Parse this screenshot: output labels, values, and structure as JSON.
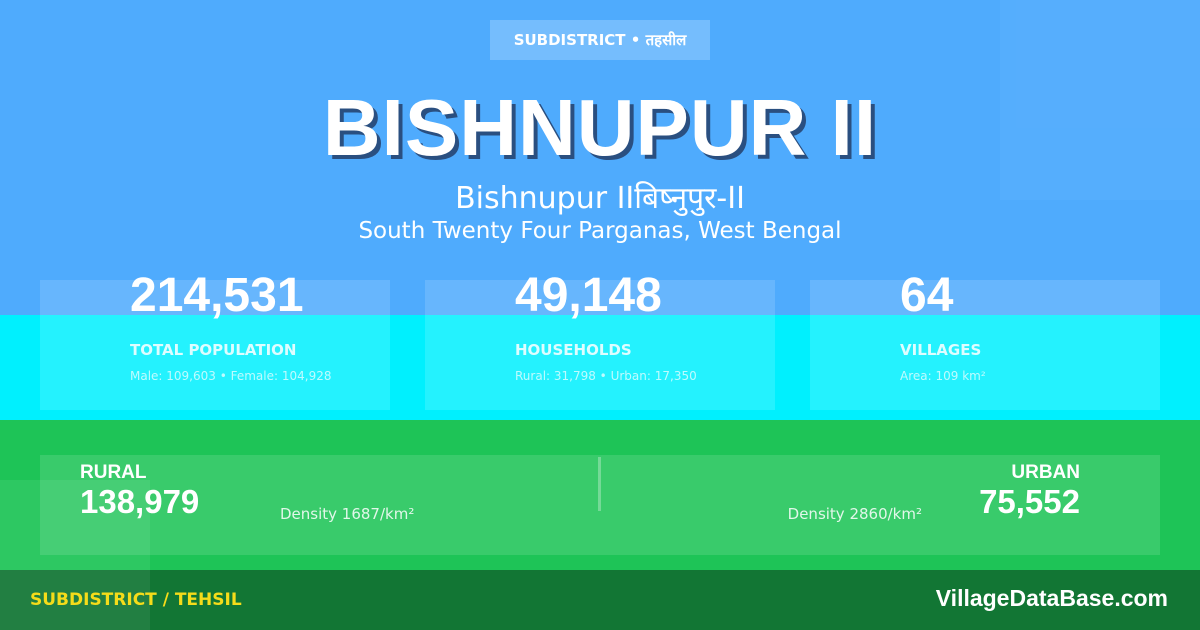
{
  "colors": {
    "top": "#4fabfd",
    "mid": "#00f0fe",
    "green": "#1ec457",
    "footer": "#127634",
    "accent": "#f5dc1a"
  },
  "badge": "SUBDISTRICT • तहसील",
  "title": "BISHNUPUR II",
  "subtitle": "Bishnupur IIबिष्नुपुर-II",
  "location": "South Twenty Four Parganas, West Bengal",
  "stats": [
    {
      "value": "214,531",
      "label": "TOTAL POPULATION",
      "detail": "Male: 109,603 • Female: 104,928"
    },
    {
      "value": "49,148",
      "label": "HOUSEHOLDS",
      "detail": "Rural: 31,798 • Urban: 17,350"
    },
    {
      "value": "64",
      "label": "VILLAGES",
      "detail": "Area: 109 km²"
    }
  ],
  "rural": {
    "label": "RURAL",
    "value": "138,979",
    "density": "Density 1687/km²"
  },
  "urban": {
    "label": "URBAN",
    "value": "75,552",
    "density": "Density 2860/km²"
  },
  "footer": {
    "left": "SUBDISTRICT / TEHSIL",
    "right": "VillageDataBase.com"
  }
}
